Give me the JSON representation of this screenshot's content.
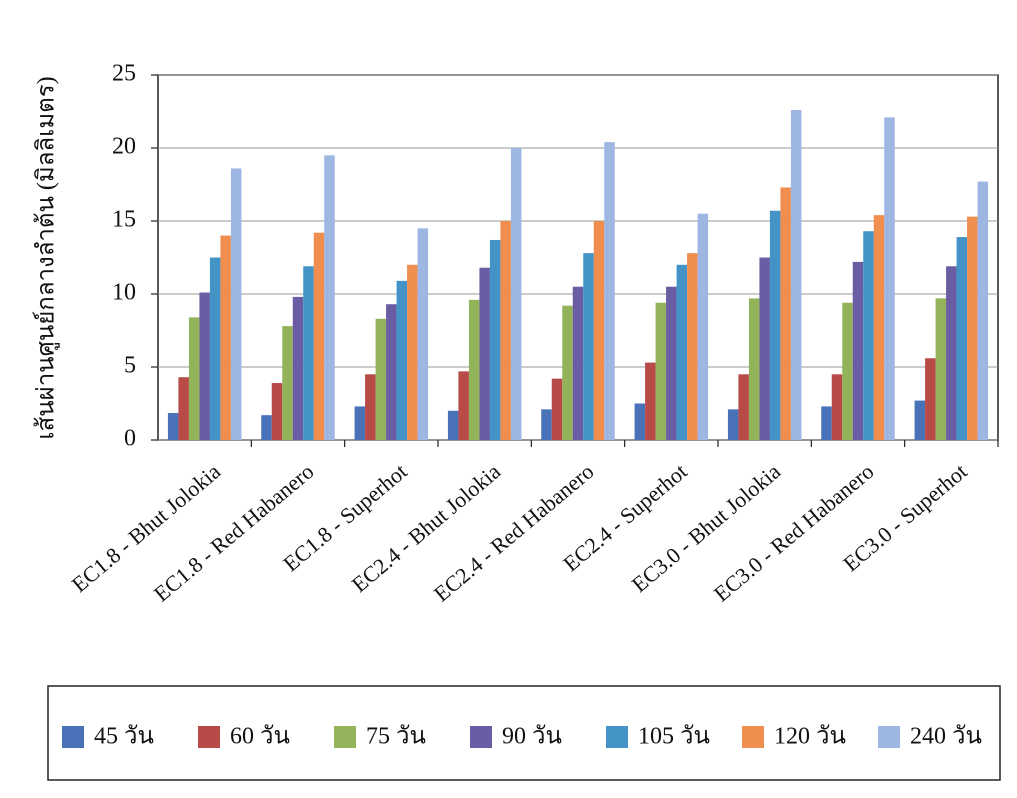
{
  "chart_data": {
    "type": "bar",
    "y_label": "เส้นผ่านศูนย์กลางลำต้น (มิลลิเมตร)",
    "categories": [
      "EC1.8 - Bhut Jolokia",
      "EC1.8 - Red Habanero",
      "EC1.8 - Superhot",
      "EC2.4 - Bhut Jolokia",
      "EC2.4 - Red Habanero",
      "EC2.4 - Superhot",
      "EC3.0 - Bhut Jolokia",
      "EC3.0 - Red Habanero",
      "EC3.0 - Superhot"
    ],
    "series": [
      {
        "name": "45 วัน",
        "color": "#4a72b8",
        "values": [
          1.85,
          1.7,
          2.3,
          2.0,
          2.1,
          2.5,
          2.1,
          2.3,
          2.7
        ]
      },
      {
        "name": "60 วัน",
        "color": "#b84a47",
        "values": [
          4.3,
          3.9,
          4.5,
          4.7,
          4.2,
          5.3,
          4.5,
          4.5,
          5.6
        ]
      },
      {
        "name": "75 วัน",
        "color": "#93b35a",
        "values": [
          8.4,
          7.8,
          8.3,
          9.6,
          9.2,
          9.4,
          9.7,
          9.4,
          9.7
        ]
      },
      {
        "name": "90 วัน",
        "color": "#6a5da3",
        "values": [
          10.1,
          9.8,
          9.3,
          11.8,
          10.5,
          10.5,
          12.5,
          12.2,
          11.9
        ]
      },
      {
        "name": "105 วัน",
        "color": "#4393c6",
        "values": [
          12.5,
          11.9,
          10.9,
          13.7,
          12.8,
          12.0,
          15.7,
          14.3,
          13.9
        ]
      },
      {
        "name": "120 วัน",
        "color": "#f08e4f",
        "values": [
          14.0,
          14.2,
          12.0,
          15.0,
          15.0,
          12.8,
          17.3,
          15.4,
          15.3
        ]
      },
      {
        "name": "240 วัน",
        "color": "#9db6e2",
        "values": [
          18.6,
          19.5,
          14.5,
          20.0,
          20.4,
          15.5,
          22.6,
          22.1,
          17.7
        ]
      }
    ],
    "ylim": [
      0,
      25
    ],
    "yticks": [
      0,
      5,
      10,
      15,
      20,
      25
    ],
    "grid": true,
    "legend": "bottom"
  }
}
